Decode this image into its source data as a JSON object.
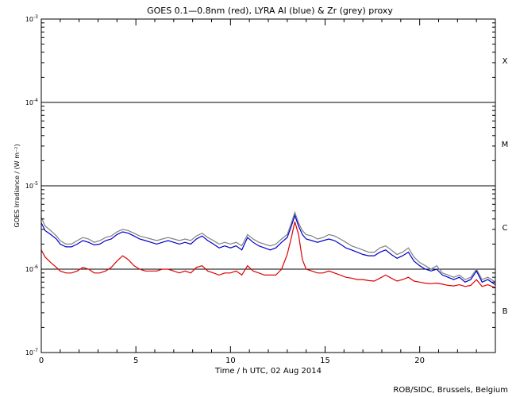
{
  "chart_data": {
    "type": "line",
    "title": "GOES 0.1—0.8nm (red), LYRA Al (blue) & Zr (grey) proxy",
    "xlabel": "Time / h UTC, 02 Aug 2014",
    "ylabel": "GOES Irradiance / (W m⁻²)",
    "xlim": [
      0,
      24
    ],
    "ylim": [
      1e-07,
      0.001
    ],
    "yscale": "log",
    "x_ticks": [
      0,
      5,
      10,
      15,
      20
    ],
    "x_tick_labels": [
      "0",
      "5",
      "10",
      "15",
      "20"
    ],
    "y_ticks": [
      1e-07,
      1e-06,
      1e-05,
      0.0001,
      0.001
    ],
    "y_tick_labels": [
      {
        "base": "10",
        "exp": "-7"
      },
      {
        "base": "10",
        "exp": "-6"
      },
      {
        "base": "10",
        "exp": "-5"
      },
      {
        "base": "10",
        "exp": "-4"
      },
      {
        "base": "10",
        "exp": "-3"
      }
    ],
    "reference_lines": [
      1e-06,
      1e-05,
      0.0001
    ],
    "flare_classes": [
      {
        "label": "X",
        "value": 0.00032
      },
      {
        "label": "M",
        "value": 3.2e-05
      },
      {
        "label": "C",
        "value": 3.2e-06
      },
      {
        "label": "B",
        "value": 3.2e-07
      }
    ],
    "series": [
      {
        "color": "#808080",
        "x": [
          0,
          0.2,
          0.5,
          0.8,
          1.0,
          1.3,
          1.6,
          1.9,
          2.2,
          2.5,
          2.8,
          3.1,
          3.4,
          3.7,
          4.0,
          4.3,
          4.6,
          4.9,
          5.2,
          5.5,
          5.8,
          6.1,
          6.4,
          6.7,
          7.0,
          7.3,
          7.6,
          7.9,
          8.2,
          8.5,
          8.8,
          9.1,
          9.4,
          9.7,
          10.0,
          10.3,
          10.6,
          10.9,
          11.2,
          11.5,
          11.8,
          12.1,
          12.4,
          12.7,
          13.0,
          13.2,
          13.4,
          13.6,
          13.8,
          14.0,
          14.3,
          14.6,
          14.9,
          15.2,
          15.5,
          15.8,
          16.1,
          16.4,
          16.7,
          17.0,
          17.3,
          17.6,
          17.9,
          18.2,
          18.5,
          18.8,
          19.1,
          19.4,
          19.7,
          20.0,
          20.3,
          20.6,
          20.9,
          21.2,
          21.5,
          21.8,
          22.1,
          22.4,
          22.7,
          23.0,
          23.3,
          23.6,
          24.0
        ],
        "y": [
          4.2e-06,
          3.3e-06,
          2.9e-06,
          2.5e-06,
          2.2e-06,
          2e-06,
          2e-06,
          2.2e-06,
          2.4e-06,
          2.3e-06,
          2.1e-06,
          2.2e-06,
          2.4e-06,
          2.5e-06,
          2.8e-06,
          3e-06,
          2.9e-06,
          2.7e-06,
          2.5e-06,
          2.4e-06,
          2.3e-06,
          2.2e-06,
          2.3e-06,
          2.4e-06,
          2.3e-06,
          2.2e-06,
          2.3e-06,
          2.2e-06,
          2.5e-06,
          2.7e-06,
          2.4e-06,
          2.2e-06,
          2e-06,
          2.1e-06,
          2e-06,
          2.1e-06,
          1.9e-06,
          2.6e-06,
          2.3e-06,
          2.1e-06,
          2e-06,
          1.9e-06,
          2e-06,
          2.3e-06,
          2.6e-06,
          3.5e-06,
          4.8e-06,
          3.6e-06,
          2.9e-06,
          2.6e-06,
          2.5e-06,
          2.3e-06,
          2.4e-06,
          2.6e-06,
          2.5e-06,
          2.3e-06,
          2.1e-06,
          1.9e-06,
          1.8e-06,
          1.7e-06,
          1.6e-06,
          1.6e-06,
          1.8e-06,
          1.9e-06,
          1.7e-06,
          1.5e-06,
          1.6e-06,
          1.8e-06,
          1.4e-06,
          1.2e-06,
          1.1e-06,
          1e-06,
          1.1e-06,
          9e-07,
          8.5e-07,
          8e-07,
          8.5e-07,
          7.5e-07,
          8e-07,
          1e-06,
          7.5e-07,
          8e-07,
          7e-07
        ]
      },
      {
        "color": "#0000cc",
        "x": [
          0,
          0.2,
          0.5,
          0.8,
          1.0,
          1.3,
          1.6,
          1.9,
          2.2,
          2.5,
          2.8,
          3.1,
          3.4,
          3.7,
          4.0,
          4.3,
          4.6,
          4.9,
          5.2,
          5.5,
          5.8,
          6.1,
          6.4,
          6.7,
          7.0,
          7.3,
          7.6,
          7.9,
          8.2,
          8.5,
          8.8,
          9.1,
          9.4,
          9.7,
          10.0,
          10.3,
          10.6,
          10.9,
          11.2,
          11.5,
          11.8,
          12.1,
          12.4,
          12.7,
          13.0,
          13.2,
          13.4,
          13.6,
          13.8,
          14.0,
          14.3,
          14.6,
          14.9,
          15.2,
          15.5,
          15.8,
          16.1,
          16.4,
          16.7,
          17.0,
          17.3,
          17.6,
          17.9,
          18.2,
          18.5,
          18.8,
          19.1,
          19.4,
          19.7,
          20.0,
          20.3,
          20.6,
          20.9,
          21.2,
          21.5,
          21.8,
          22.1,
          22.4,
          22.7,
          23.0,
          23.3,
          23.6,
          24.0
        ],
        "y": [
          3.6e-06,
          2.9e-06,
          2.6e-06,
          2.3e-06,
          2e-06,
          1.85e-06,
          1.85e-06,
          2e-06,
          2.2e-06,
          2.1e-06,
          1.95e-06,
          2e-06,
          2.2e-06,
          2.3e-06,
          2.6e-06,
          2.8e-06,
          2.7e-06,
          2.5e-06,
          2.3e-06,
          2.2e-06,
          2.1e-06,
          2e-06,
          2.1e-06,
          2.2e-06,
          2.1e-06,
          2e-06,
          2.1e-06,
          2e-06,
          2.3e-06,
          2.5e-06,
          2.2e-06,
          2e-06,
          1.8e-06,
          1.9e-06,
          1.8e-06,
          1.9e-06,
          1.7e-06,
          2.4e-06,
          2.1e-06,
          1.9e-06,
          1.8e-06,
          1.7e-06,
          1.8e-06,
          2.1e-06,
          2.4e-06,
          3.2e-06,
          4.4e-06,
          3.3e-06,
          2.6e-06,
          2.3e-06,
          2.2e-06,
          2.1e-06,
          2.2e-06,
          2.3e-06,
          2.2e-06,
          2e-06,
          1.8e-06,
          1.7e-06,
          1.6e-06,
          1.5e-06,
          1.45e-06,
          1.45e-06,
          1.6e-06,
          1.7e-06,
          1.5e-06,
          1.35e-06,
          1.45e-06,
          1.6e-06,
          1.25e-06,
          1.1e-06,
          1e-06,
          9.5e-07,
          1e-06,
          8.5e-07,
          8e-07,
          7.5e-07,
          8e-07,
          7e-07,
          7.5e-07,
          9.5e-07,
          7e-07,
          7.5e-07,
          6.5e-07
        ]
      },
      {
        "color": "#dd0000",
        "x": [
          0,
          0.2,
          0.5,
          0.8,
          1.0,
          1.3,
          1.6,
          1.9,
          2.2,
          2.5,
          2.8,
          3.1,
          3.4,
          3.7,
          4.0,
          4.3,
          4.6,
          4.9,
          5.2,
          5.5,
          5.8,
          6.1,
          6.4,
          6.7,
          7.0,
          7.3,
          7.6,
          7.9,
          8.2,
          8.5,
          8.8,
          9.1,
          9.4,
          9.7,
          10.0,
          10.3,
          10.6,
          10.9,
          11.2,
          11.5,
          11.8,
          12.1,
          12.4,
          12.7,
          13.0,
          13.2,
          13.4,
          13.6,
          13.8,
          14.0,
          14.3,
          14.6,
          14.9,
          15.2,
          15.5,
          15.8,
          16.1,
          16.4,
          16.7,
          17.0,
          17.3,
          17.6,
          17.9,
          18.2,
          18.5,
          18.8,
          19.1,
          19.4,
          19.7,
          20.0,
          20.3,
          20.6,
          20.9,
          21.2,
          21.5,
          21.8,
          22.1,
          22.4,
          22.7,
          23.0,
          23.3,
          23.6,
          24.0
        ],
        "y": [
          1.7e-06,
          1.4e-06,
          1.2e-06,
          1.05e-06,
          9.5e-07,
          9e-07,
          9e-07,
          9.5e-07,
          1.05e-06,
          1e-06,
          9e-07,
          9e-07,
          9.5e-07,
          1.05e-06,
          1.25e-06,
          1.45e-06,
          1.3e-06,
          1.1e-06,
          1e-06,
          9.5e-07,
          9.5e-07,
          9.5e-07,
          1e-06,
          1e-06,
          9.5e-07,
          9e-07,
          9.5e-07,
          9e-07,
          1.05e-06,
          1.1e-06,
          9.5e-07,
          9e-07,
          8.5e-07,
          9e-07,
          9e-07,
          9.5e-07,
          8.5e-07,
          1.1e-06,
          9.5e-07,
          9e-07,
          8.5e-07,
          8.5e-07,
          8.5e-07,
          1e-06,
          1.5e-06,
          2.3e-06,
          3.7e-06,
          2.6e-06,
          1.3e-06,
          1e-06,
          9.5e-07,
          9e-07,
          9e-07,
          9.5e-07,
          9e-07,
          8.5e-07,
          8e-07,
          7.8e-07,
          7.5e-07,
          7.5e-07,
          7.3e-07,
          7.2e-07,
          7.8e-07,
          8.5e-07,
          7.8e-07,
          7.2e-07,
          7.5e-07,
          8e-07,
          7.2e-07,
          7e-07,
          6.8e-07,
          6.7e-07,
          6.8e-07,
          6.6e-07,
          6.4e-07,
          6.3e-07,
          6.5e-07,
          6.2e-07,
          6.4e-07,
          7.5e-07,
          6.2e-07,
          6.5e-07,
          6e-07
        ]
      }
    ],
    "credit": "ROB/SIDC, Brussels, Belgium"
  }
}
